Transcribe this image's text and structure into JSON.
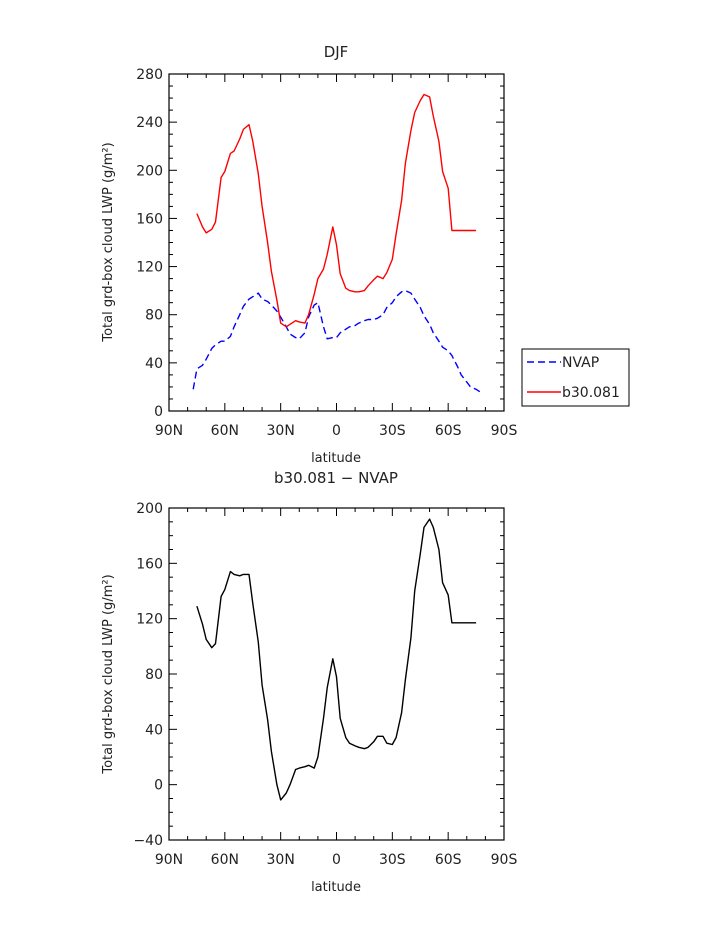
{
  "chart_data": [
    {
      "type": "line",
      "title": "DJF",
      "xlabel": "latitude",
      "ylabel": "Total grd-box cloud LWP (g/m²)",
      "xlim": [
        90,
        -90
      ],
      "ylim": [
        0,
        280
      ],
      "xticks": [
        90,
        60,
        30,
        0,
        -30,
        -60,
        -90
      ],
      "xtick_labels": [
        "90N",
        "60N",
        "30N",
        "0",
        "30S",
        "60S",
        "90S"
      ],
      "yticks": [
        0,
        40,
        80,
        120,
        160,
        200,
        240,
        280
      ],
      "ytick_labels": [
        "0",
        "40",
        "80",
        "120",
        "160",
        "200",
        "240",
        "280"
      ],
      "legend_position": "outside-right",
      "series": [
        {
          "name": "NVAP",
          "color": "#0000ff",
          "dash": "dashed",
          "x": [
            77,
            75,
            72,
            70,
            67,
            65,
            62,
            60,
            57,
            55,
            52,
            50,
            47,
            45,
            42,
            40,
            37,
            35,
            32,
            30,
            27,
            25,
            22,
            20,
            17,
            15,
            12,
            10,
            7,
            5,
            2,
            0,
            -2,
            -5,
            -7,
            -10,
            -12,
            -15,
            -17,
            -20,
            -22,
            -25,
            -27,
            -30,
            -32,
            -35,
            -37,
            -40,
            -42,
            -45,
            -47,
            -50,
            -52,
            -55,
            -57,
            -60,
            -62,
            -65,
            -67,
            -70,
            -72,
            -75,
            -77
          ],
          "y": [
            18,
            35,
            38,
            43,
            52,
            55,
            58,
            58,
            62,
            70,
            80,
            87,
            93,
            95,
            98,
            93,
            91,
            88,
            83,
            78,
            70,
            64,
            61,
            60,
            65,
            78,
            88,
            90,
            70,
            60,
            61,
            61,
            65,
            68,
            70,
            71,
            73,
            75,
            76,
            76,
            77,
            80,
            86,
            90,
            95,
            99,
            100,
            98,
            93,
            86,
            79,
            72,
            65,
            58,
            53,
            50,
            46,
            37,
            30,
            24,
            20,
            18,
            16
          ]
        },
        {
          "name": "b30.081",
          "color": "#ff0000",
          "dash": "solid",
          "x": [
            75,
            72,
            70,
            67,
            65,
            62,
            60,
            57,
            55,
            52,
            50,
            47,
            45,
            42,
            40,
            37,
            35,
            32,
            30,
            27,
            25,
            22,
            20,
            17,
            15,
            12,
            10,
            7,
            5,
            2,
            0,
            -2,
            -5,
            -7,
            -10,
            -12,
            -15,
            -17,
            -20,
            -22,
            -25,
            -27,
            -30,
            -32,
            -35,
            -37,
            -40,
            -42,
            -45,
            -47,
            -50,
            -52,
            -55,
            -57,
            -60,
            -62,
            -65,
            -67,
            -70,
            -72,
            -75
          ],
          "y": [
            164,
            153,
            148,
            151,
            157,
            194,
            199,
            214,
            216,
            226,
            234,
            238,
            224,
            197,
            170,
            140,
            116,
            92,
            73,
            70,
            72,
            75,
            74,
            73,
            80,
            97,
            110,
            118,
            130,
            153,
            138,
            114,
            102,
            100,
            99,
            99,
            100,
            104,
            109,
            112,
            110,
            115,
            126,
            147,
            175,
            206,
            233,
            248,
            258,
            263,
            261,
            245,
            224,
            199,
            185,
            150,
            150,
            150,
            150,
            150,
            150
          ]
        }
      ]
    },
    {
      "type": "line",
      "title": "b30.081 − NVAP",
      "xlabel": "latitude",
      "ylabel": "Total grd-box cloud LWP (g/m²)",
      "xlim": [
        90,
        -90
      ],
      "ylim": [
        -40,
        200
      ],
      "xticks": [
        90,
        60,
        30,
        0,
        -30,
        -60,
        -90
      ],
      "xtick_labels": [
        "90N",
        "60N",
        "30N",
        "0",
        "30S",
        "60S",
        "90S"
      ],
      "yticks": [
        -40,
        0,
        40,
        80,
        120,
        160,
        200
      ],
      "ytick_labels": [
        "−40",
        "0",
        "40",
        "80",
        "120",
        "160",
        "200"
      ],
      "series": [
        {
          "color": "#000000",
          "dash": "solid",
          "x": [
            75,
            72,
            70,
            67,
            65,
            62,
            60,
            57,
            55,
            52,
            50,
            47,
            45,
            42,
            40,
            37,
            35,
            32,
            30,
            27,
            25,
            22,
            20,
            17,
            15,
            12,
            10,
            7,
            5,
            2,
            0,
            -2,
            -5,
            -7,
            -10,
            -12,
            -15,
            -17,
            -20,
            -22,
            -25,
            -27,
            -30,
            -32,
            -35,
            -37,
            -40,
            -42,
            -45,
            -47,
            -50,
            -52,
            -55,
            -57,
            -60,
            -62,
            -65,
            -67,
            -70,
            -72,
            -75
          ],
          "y": [
            129,
            116,
            105,
            99,
            102,
            136,
            141,
            154,
            152,
            151,
            152,
            152,
            131,
            103,
            72,
            47,
            24,
            0,
            -11,
            -6,
            0,
            11,
            12,
            13,
            14,
            12,
            20,
            48,
            70,
            91,
            78,
            48,
            34,
            30,
            28,
            27,
            26,
            27,
            31,
            35,
            35,
            30,
            29,
            34,
            52,
            76,
            106,
            140,
            167,
            186,
            192,
            186,
            170,
            146,
            137,
            117,
            117,
            117,
            117,
            117,
            117
          ]
        }
      ]
    }
  ]
}
